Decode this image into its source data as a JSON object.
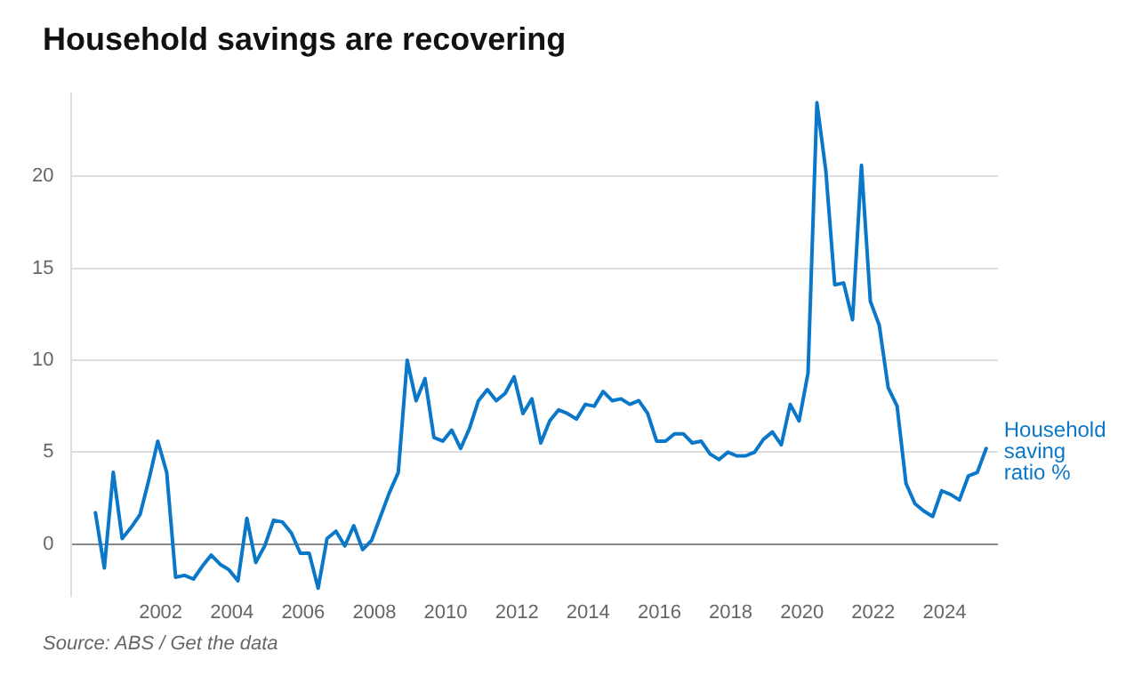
{
  "chart_data": {
    "type": "line",
    "title": "Household savings are recovering",
    "x": [
      2000.17,
      2000.42,
      2000.67,
      2000.92,
      2001.17,
      2001.42,
      2001.67,
      2001.92,
      2002.17,
      2002.42,
      2002.67,
      2002.92,
      2003.17,
      2003.42,
      2003.67,
      2003.92,
      2004.17,
      2004.42,
      2004.67,
      2004.92,
      2005.17,
      2005.42,
      2005.67,
      2005.92,
      2006.17,
      2006.42,
      2006.67,
      2006.92,
      2007.17,
      2007.42,
      2007.67,
      2007.92,
      2008.17,
      2008.42,
      2008.67,
      2008.92,
      2009.17,
      2009.42,
      2009.67,
      2009.92,
      2010.17,
      2010.42,
      2010.67,
      2010.92,
      2011.17,
      2011.42,
      2011.67,
      2011.92,
      2012.17,
      2012.42,
      2012.67,
      2012.92,
      2013.17,
      2013.42,
      2013.67,
      2013.92,
      2014.17,
      2014.42,
      2014.67,
      2014.92,
      2015.17,
      2015.42,
      2015.67,
      2015.92,
      2016.17,
      2016.42,
      2016.67,
      2016.92,
      2017.17,
      2017.42,
      2017.67,
      2017.92,
      2018.17,
      2018.42,
      2018.67,
      2018.92,
      2019.17,
      2019.42,
      2019.67,
      2019.92,
      2020.17,
      2020.42,
      2020.67,
      2020.92,
      2021.17,
      2021.42,
      2021.67,
      2021.92,
      2022.17,
      2022.42,
      2022.67,
      2022.92,
      2023.17,
      2023.42,
      2023.67,
      2023.92,
      2024.17,
      2024.42,
      2024.67,
      2024.92,
      2025.17
    ],
    "series": [
      {
        "name": "Household saving ratio %",
        "color": "#0a77c8",
        "values": [
          1.7,
          -1.3,
          3.9,
          0.3,
          0.9,
          1.6,
          3.5,
          5.6,
          3.9,
          -1.8,
          -1.7,
          -1.9,
          -1.2,
          -0.6,
          -1.1,
          -1.4,
          -2.0,
          1.4,
          -1.0,
          -0.1,
          1.3,
          1.2,
          0.6,
          -0.5,
          -0.5,
          -2.4,
          0.3,
          0.7,
          -0.1,
          1.0,
          -0.3,
          0.2,
          1.5,
          2.8,
          3.9,
          10.0,
          7.8,
          9.0,
          5.8,
          5.6,
          6.2,
          5.2,
          6.3,
          7.8,
          8.4,
          7.8,
          8.2,
          9.1,
          7.1,
          7.9,
          5.5,
          6.7,
          7.3,
          7.1,
          6.8,
          7.6,
          7.5,
          8.3,
          7.8,
          7.9,
          7.6,
          7.8,
          7.1,
          5.6,
          5.6,
          6.0,
          6.0,
          5.5,
          5.6,
          4.9,
          4.6,
          5.0,
          4.8,
          4.8,
          5.0,
          5.7,
          6.1,
          5.4,
          7.6,
          6.7,
          9.3,
          24.0,
          20.3,
          14.1,
          14.2,
          12.2,
          20.6,
          13.2,
          11.9,
          8.5,
          7.5,
          3.3,
          2.2,
          1.8,
          1.5,
          2.9,
          2.7,
          2.4,
          3.7,
          3.9,
          5.2
        ]
      }
    ],
    "xlim": [
      1999.5,
      2025.5
    ],
    "xticks": [
      2002,
      2004,
      2006,
      2008,
      2010,
      2012,
      2014,
      2016,
      2018,
      2020,
      2022,
      2024
    ],
    "ylim": [
      -2.8,
      24.5
    ],
    "yticks": [
      0,
      5,
      10,
      15,
      20
    ],
    "grid": "y",
    "legend": false,
    "marker": "none",
    "line_style": "solid",
    "annotations": [
      "Source: ABS / Get the data"
    ]
  }
}
